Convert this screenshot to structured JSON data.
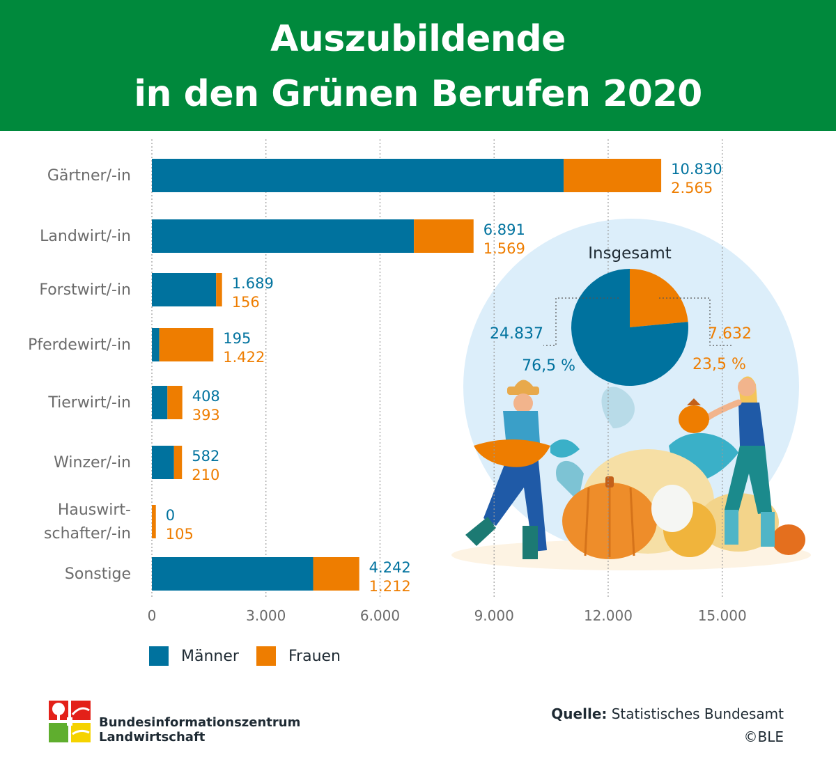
{
  "header": {
    "title_line1": "Auszubildende",
    "title_line2": "in den Grünen Berufen 2020"
  },
  "colors": {
    "header_bg": "#00893c",
    "men": "#00729e",
    "women": "#ee7d00",
    "circle_bg": "#dceefa",
    "axis_text": "#6b6b6b"
  },
  "chart_data": [
    {
      "type": "bar",
      "orientation": "horizontal",
      "stacked": true,
      "categories": [
        "Gärtner/-in",
        "Landwirt/-in",
        "Forstwirt/-in",
        "Pferdewirt/-in",
        "Tierwirt/-in",
        "Winzer/-in",
        [
          "Hauswirt-",
          "schafter/-in"
        ],
        "Sonstige"
      ],
      "series": [
        {
          "name": "Männer",
          "values": [
            10830,
            6891,
            1689,
            195,
            408,
            582,
            0,
            4242
          ],
          "labels": [
            "10.830",
            "6.891",
            "1.689",
            "195",
            "408",
            "582",
            "0",
            "4.242"
          ]
        },
        {
          "name": "Frauen",
          "values": [
            2565,
            1569,
            156,
            1422,
            393,
            210,
            105,
            1212
          ],
          "labels": [
            "2.565",
            "1.569",
            "156",
            "1.422",
            "393",
            "210",
            "105",
            "1.212"
          ]
        }
      ],
      "xlim": [
        0,
        17000
      ],
      "xticks": [
        0,
        3000,
        6000,
        9000,
        12000,
        15000
      ],
      "xtick_labels": [
        "0",
        "3.000",
        "6.000",
        "9.000",
        "12.000",
        "15.000"
      ],
      "grid": "vertical dotted",
      "legend_position": "bottom-left"
    },
    {
      "type": "pie",
      "title": "Insgesamt",
      "slices": [
        {
          "name": "Männer",
          "value": 24837,
          "value_label": "24.837",
          "percent_label": "76,5 %"
        },
        {
          "name": "Frauen",
          "value": 7632,
          "value_label": "7.632",
          "percent_label": "23,5 %"
        }
      ]
    }
  ],
  "legend": {
    "men_label": "Männer",
    "women_label": "Frauen"
  },
  "footer": {
    "org_line1": "Bundesinformationszentrum",
    "org_line2": "Landwirtschaft",
    "source_label": "Quelle:",
    "source_value": " Statistisches Bundesamt",
    "copyright": "©BLE"
  }
}
